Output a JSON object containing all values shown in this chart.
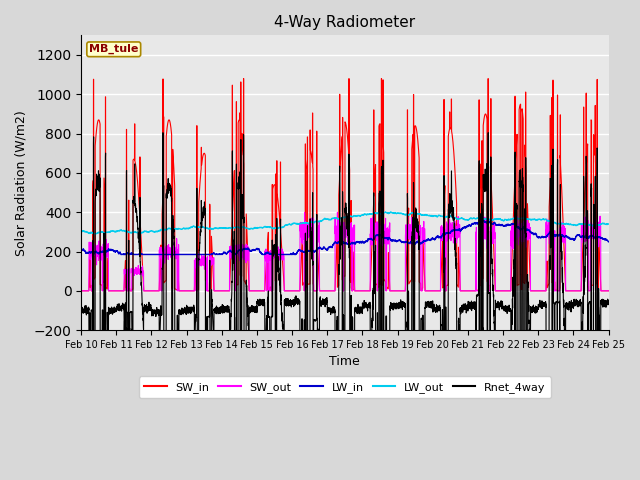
{
  "title": "4-Way Radiometer",
  "xlabel": "Time",
  "ylabel": "Solar Radiation (W/m2)",
  "ylim": [
    -200,
    1300
  ],
  "yticks": [
    -200,
    0,
    200,
    400,
    600,
    800,
    1000,
    1200
  ],
  "station_label": "MB_tule",
  "x_tick_labels": [
    "Feb 10",
    "Feb 11",
    "Feb 12",
    "Feb 13",
    "Feb 14",
    "Feb 15",
    "Feb 16",
    "Feb 17",
    "Feb 18",
    "Feb 19",
    "Feb 20",
    "Feb 21",
    "Feb 22",
    "Feb 23",
    "Feb 24",
    "Feb 25"
  ],
  "legend_entries": [
    "SW_in",
    "SW_out",
    "LW_in",
    "LW_out",
    "Rnet_4way"
  ],
  "colors": {
    "SW_in": "#ff0000",
    "SW_out": "#ff00ff",
    "LW_in": "#0000cd",
    "LW_out": "#00ccee",
    "Rnet_4way": "#000000"
  },
  "background_color": "#d8d8d8",
  "plot_bg_color": "#e8e8e8",
  "n_days": 15,
  "points_per_day": 288
}
